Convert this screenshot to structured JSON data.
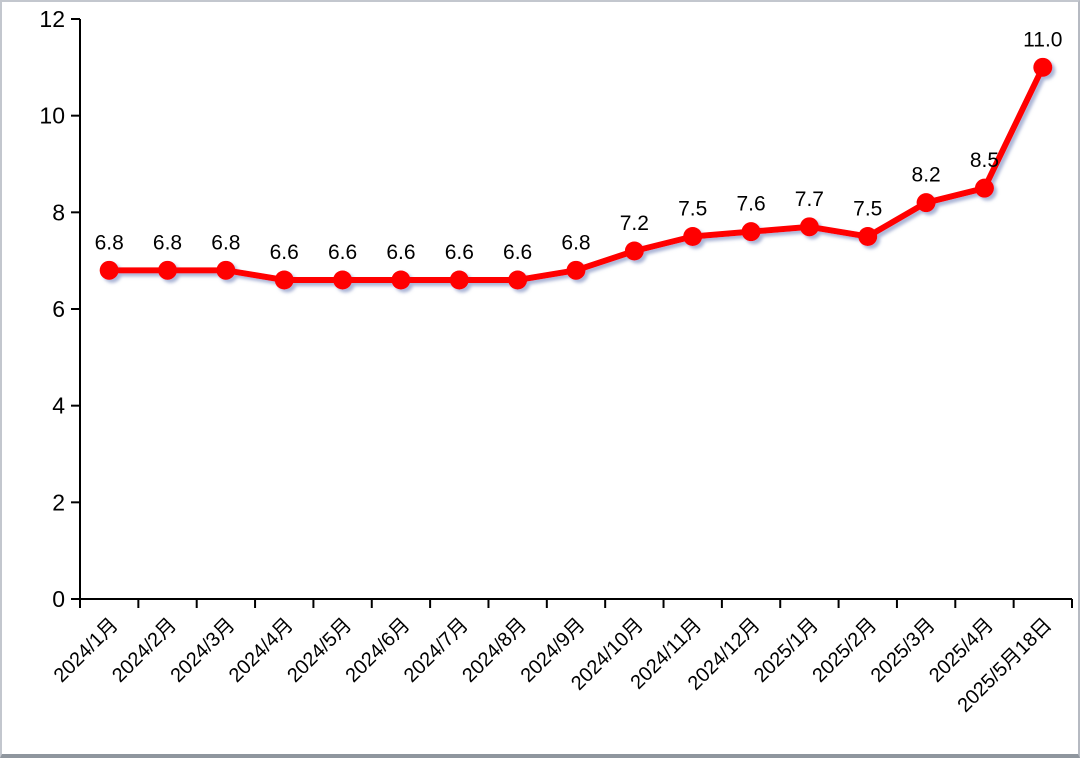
{
  "chart_data": {
    "type": "line",
    "title": "",
    "xlabel": "",
    "ylabel": "",
    "categories": [
      "2024/1月",
      "2024/2月",
      "2024/3月",
      "2024/4月",
      "2024/5月",
      "2024/6月",
      "2024/7月",
      "2024/8月",
      "2024/9月",
      "2024/10月",
      "2024/11月",
      "2024/12月",
      "2025/1月",
      "2025/2月",
      "2025/3月",
      "2025/4月",
      "2025/5月18日"
    ],
    "series": [
      {
        "name": "series-1",
        "values": [
          6.8,
          6.8,
          6.8,
          6.6,
          6.6,
          6.6,
          6.6,
          6.6,
          6.8,
          7.2,
          7.5,
          7.6,
          7.7,
          7.5,
          8.2,
          8.5,
          11.0
        ],
        "color": "#ff0000"
      }
    ],
    "data_labels": [
      "6.8",
      "6.8",
      "6.8",
      "6.6",
      "6.6",
      "6.6",
      "6.6",
      "6.6",
      "6.8",
      "7.2",
      "7.5",
      "7.6",
      "7.7",
      "7.5",
      "8.2",
      "8.5",
      "11.0"
    ],
    "label_position": "above",
    "marker": "circle",
    "grid": false,
    "legend": "none",
    "y_axis": {
      "min": 0,
      "max": 12,
      "step": 2,
      "tick_labels": [
        "0",
        "2",
        "4",
        "6",
        "8",
        "10",
        "12"
      ]
    },
    "x_axis": {
      "tick_style": "between-categories",
      "label_rotation_deg": 45
    }
  },
  "colors": {
    "line": "#ff0000",
    "marker": "#ff0000",
    "axis": "#000000",
    "data_label": "#000000",
    "tick_label": "#000000",
    "shadow": "#6478b4",
    "background": "#ffffff"
  }
}
